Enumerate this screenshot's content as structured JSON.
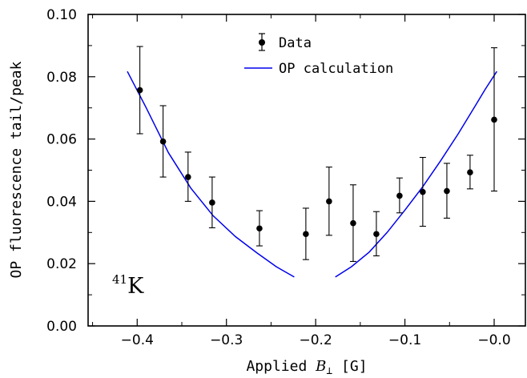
{
  "chart_data": {
    "type": "scatter",
    "xlabel_prefix": "Applied ",
    "xlabel_var": "B",
    "xlabel_sub": "⊥",
    "xlabel_unit": " [G]",
    "ylabel": "OP fluorescence tail/peak",
    "xlim": [
      -0.455,
      0.035
    ],
    "ylim": [
      0.0,
      0.1
    ],
    "x_ticks": [
      -0.4,
      -0.3,
      -0.2,
      -0.1,
      0.0
    ],
    "x_tick_labels": [
      "−0.4",
      "−0.3",
      "−0.2",
      "−0.1",
      "−0.0"
    ],
    "y_ticks": [
      0.0,
      0.02,
      0.04,
      0.06,
      0.08,
      0.1
    ],
    "y_tick_labels": [
      "0.00",
      "0.02",
      "0.04",
      "0.06",
      "0.08",
      "0.10"
    ],
    "isotope_mass": "41",
    "isotope_symbol": "K",
    "legend": {
      "position": "top-center",
      "data_label": "Data",
      "calc_label": "OP calculation"
    },
    "colors": {
      "data": "#000000",
      "calc": "#0000ee",
      "axis": "#000000"
    },
    "series": [
      {
        "name": "Data",
        "kind": "points-with-errorbars",
        "x": [
          -0.397,
          -0.371,
          -0.343,
          -0.316,
          -0.263,
          -0.211,
          -0.185,
          -0.158,
          -0.132,
          -0.106,
          -0.08,
          -0.053,
          -0.027,
          0.0
        ],
        "y": [
          0.0757,
          0.0592,
          0.0478,
          0.0396,
          0.0313,
          0.0295,
          0.04,
          0.033,
          0.0295,
          0.0418,
          0.043,
          0.0433,
          0.0493,
          0.0662
        ],
        "err_low": [
          0.0617,
          0.0478,
          0.04,
          0.0315,
          0.0257,
          0.0213,
          0.0291,
          0.0207,
          0.0225,
          0.0363,
          0.032,
          0.0346,
          0.044,
          0.0433
        ],
        "err_high": [
          0.0897,
          0.0707,
          0.0558,
          0.0478,
          0.037,
          0.0378,
          0.051,
          0.0453,
          0.0367,
          0.0475,
          0.0541,
          0.0522,
          0.0548,
          0.0893
        ]
      },
      {
        "name": "OP calculation",
        "kind": "line",
        "segments": [
          {
            "x": [
              -0.411,
              -0.39,
              -0.365,
              -0.34,
              -0.315,
              -0.29,
              -0.266,
              -0.244,
              -0.224
            ],
            "y": [
              0.0817,
              0.0701,
              0.0556,
              0.0443,
              0.0354,
              0.0287,
              0.0235,
              0.019,
              0.0157
            ]
          },
          {
            "x": [
              -0.178,
              -0.16,
              -0.14,
              -0.12,
              -0.1,
              -0.08,
              -0.06,
              -0.04,
              -0.02,
              -0.01,
              0.003
            ],
            "y": [
              0.0157,
              0.019,
              0.0237,
              0.03,
              0.0372,
              0.0447,
              0.053,
              0.0618,
              0.0712,
              0.076,
              0.0817
            ]
          }
        ]
      }
    ]
  }
}
